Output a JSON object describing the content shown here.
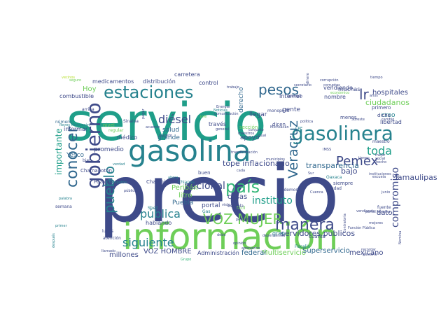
{
  "word_cloud": {
    "palette": {
      "dark_purple": "#440154",
      "indigo": "#3e4a89",
      "blue": "#31688e",
      "teal": "#26828e",
      "green_teal": "#1f9e89",
      "green": "#35b779",
      "light_green": "#6ece58",
      "yellow_green": "#b5de2b"
    },
    "words": [
      "servicio",
      "precio",
      "información",
      "gasolina",
      "estaciones",
      "pesos",
      "gasolinera",
      "gobierno",
      "conocer",
      "pueblo",
      "país",
      "VOZ MUJER",
      "manera",
      "Veracruz",
      "Pemex",
      "instituto",
      "toda",
      "lr",
      "compromiso",
      "Tamaulipas",
      "hospitales",
      "ciudadanos",
      "diésel",
      "nacional",
      "tope inflacionario",
      "transparencia",
      "siguiente",
      "pública",
      "servidores publicos",
      "importante",
      "Multiservicio",
      "mexicano",
      "Superservicio",
      "VOZ HOMBRE",
      "millones",
      "Administración",
      "federal",
      "Peribán",
      "Puebla",
      "Hoy",
      "combustible",
      "medicamentos",
      "distribución",
      "carretera",
      "control",
      "Internet",
      "vendiendo",
      "nombre",
      "gente",
      "creo",
      "bajo",
      "dato",
      "libertad",
      "gran",
      "cosas",
      "escuela",
      "salud",
      "grande",
      "apoyo",
      "médico",
      "promedio",
      "Sinaloa",
      "Yesco",
      "informar",
      "número",
      "arriba",
      "Chiapas",
      "portal",
      "litro",
      "buen",
      "Shell",
      "Gas",
      "hablando",
      "lunes",
      "atención",
      "llamado",
      "cuánto",
      "Fiscalía",
      "Oaxaca",
      "Ciudad",
      "siempre",
      "podemos",
      "partido",
      "opinión",
      "fácil",
      "acuerdo",
      "respeto",
      "Energía",
      "Michoacán",
      "derecho",
      "muchas",
      "menos",
      "primero",
      "maestro",
      "dicho",
      "hecho",
      "social",
      "Poza Rica",
      "Chamapotón",
      "Championes",
      "parte",
      "verdad",
      "nivel",
      "regular",
      "bien",
      "Champotón",
      "público",
      "semana",
      "palabra",
      "económico",
      "seguro",
      "vecinos",
      "tiempo",
      "secretario",
      "corruptos",
      "corrupción",
      "ejemplo",
      "llegar",
      "monopolio",
      "cada",
      "ahora",
      "Grupo",
      "visto",
      "años",
      "mejor",
      "fuente",
      "junio",
      "Sur",
      "portal Nómina",
      "vendiendo",
      "Contraloría",
      "tienen",
      "Cuenca",
      "instituciones",
      "escuela",
      "mejores",
      "Nomina",
      "IMSS",
      "comunicación",
      "Reyes Michoacán",
      "Noticias",
      "política",
      "Sureste",
      "conjunto",
      "través",
      "sección",
      "maestros",
      "general",
      "igual",
      "cambio",
      "Jefe",
      "CRE",
      "después",
      "primer",
      "aprovecho",
      "Función Pública",
      "recordar",
      "gustaría",
      "debe",
      "trabajo",
      "dinero",
      "pagar",
      "transformación",
      "dicen",
      "pequeño",
      "dependencia",
      "municipios",
      "alto",
      "día",
      "posible",
      "entre"
    ]
  }
}
